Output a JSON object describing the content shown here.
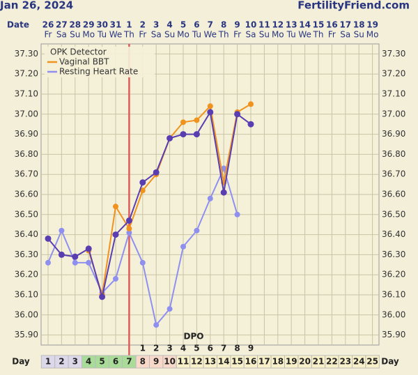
{
  "header": {
    "date": "Jan 26, 2024",
    "site": "FertilityFriend.com"
  },
  "chart_data": {
    "type": "line",
    "date_label": "Date",
    "categories": [
      "26",
      "27",
      "28",
      "29",
      "30",
      "31",
      "1",
      "2",
      "3",
      "4",
      "5",
      "6",
      "7",
      "8",
      "9",
      "10",
      "11",
      "12",
      "13",
      "14",
      "15",
      "16",
      "17",
      "18",
      "19"
    ],
    "weekdays": [
      "Fr",
      "Sa",
      "Su",
      "Mo",
      "Tu",
      "We",
      "Th",
      "Fr",
      "Sa",
      "Su",
      "Mo",
      "Tu",
      "We",
      "Th",
      "Fr",
      "Sa",
      "Su",
      "Mo",
      "Tu",
      "We",
      "Th",
      "Fr",
      "Sa",
      "Su",
      "Mo"
    ],
    "series": [
      {
        "name": "Vaginal BBT",
        "color": "#f0921e",
        "values": [
          36.38,
          null,
          null,
          36.32,
          36.1,
          36.54,
          36.43,
          36.62,
          36.7,
          36.88,
          36.96,
          36.97,
          37.04,
          36.66,
          37.01,
          37.05,
          null,
          null,
          null,
          null,
          null,
          null,
          null,
          null,
          null
        ]
      },
      {
        "color": "#5a3db0",
        "values": [
          36.38,
          36.3,
          36.29,
          36.33,
          36.09,
          36.4,
          36.47,
          36.66,
          36.71,
          36.88,
          36.9,
          36.9,
          37.01,
          36.61,
          37.0,
          36.95,
          null,
          null,
          null,
          null,
          null,
          null,
          null,
          null,
          null
        ]
      },
      {
        "name": "Resting Heart Rate",
        "color": "#8f8ff0",
        "values": [
          36.26,
          36.42,
          36.26,
          36.26,
          36.11,
          36.18,
          36.41,
          36.26,
          35.95,
          36.03,
          36.34,
          36.42,
          36.58,
          36.73,
          36.5,
          null,
          null,
          null,
          null,
          null,
          null,
          null,
          null,
          null,
          null
        ]
      }
    ],
    "opk": {
      "name": "OPK Detector",
      "color": "#e05a5a",
      "index": 6
    },
    "ylim": [
      35.85,
      37.35
    ],
    "yticks": [
      {
        "value": 35.9,
        "label": "35.90"
      },
      {
        "value": 36.0,
        "label": "36.00"
      },
      {
        "value": 36.1,
        "label": "36.10"
      },
      {
        "value": 36.2,
        "label": "36.20"
      },
      {
        "value": 36.3,
        "label": "36.30"
      },
      {
        "value": 36.4,
        "label": "36.40"
      },
      {
        "value": 36.5,
        "label": "36.50"
      },
      {
        "value": 36.6,
        "label": "36.60"
      },
      {
        "value": 36.7,
        "label": "36.70"
      },
      {
        "value": 36.8,
        "label": "36.80"
      },
      {
        "value": 36.9,
        "label": "36.90"
      },
      {
        "value": 37.0,
        "label": "37.00"
      },
      {
        "value": 37.1,
        "label": "37.10"
      },
      {
        "value": 37.2,
        "label": "37.20"
      },
      {
        "value": 37.3,
        "label": "37.30"
      }
    ],
    "grid": true,
    "dpo": {
      "label": "DPO",
      "values": [
        null,
        null,
        null,
        null,
        null,
        null,
        null,
        1,
        2,
        3,
        4,
        5,
        6,
        7,
        8,
        9,
        null,
        null,
        null,
        null,
        null,
        null,
        null,
        null,
        null
      ]
    },
    "day_row": {
      "label": "Day",
      "values": [
        1,
        2,
        3,
        4,
        5,
        6,
        7,
        8,
        9,
        10,
        11,
        12,
        13,
        14,
        15,
        16,
        17,
        18,
        19,
        20,
        21,
        22,
        23,
        24,
        25
      ],
      "colors": [
        "#dcd8ea",
        "#dcd8ea",
        "#dcd8ea",
        "#a8dc98",
        "#a8dc98",
        "#a8dc98",
        "#a8dc98",
        "#f8d8c8",
        "#f8d8c8",
        "#f8d8c8",
        "#f8f0c8",
        "#f8f0c8",
        "#f8f0c8",
        "#f8f0c8",
        "#f8f0c8",
        "#f8f0c8",
        "#f8f0c8",
        "#f8f0c8",
        "#f8f0c8",
        "#f8f0c8",
        "#f8f0c8",
        "#f8f0c8",
        "#f8f0c8",
        "#f8f0c8",
        "#f8f0c8"
      ]
    }
  }
}
